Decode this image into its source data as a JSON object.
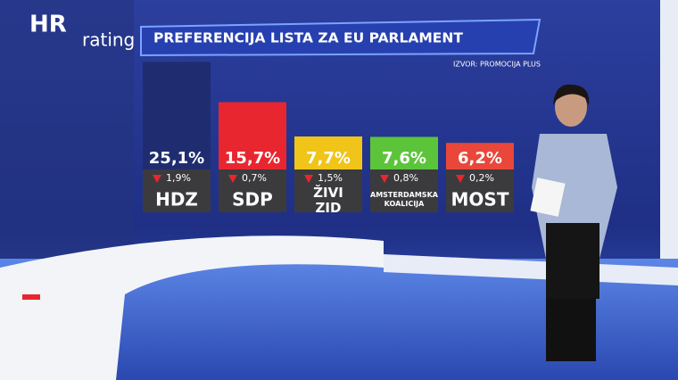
{
  "logo": {
    "main": "HR",
    "sub": "rating"
  },
  "chart_data": {
    "type": "bar",
    "title": "PREFERENCIJA LISTA ZA EU PARLAMENT",
    "subtitle": "IZVOR: PROMOCIJA PLUS",
    "categories": [
      "HDZ",
      "SDP",
      "ŽIVI ZID",
      "AMSTERDAMSKA KOALICIJA",
      "MOST"
    ],
    "values": [
      25.1,
      15.7,
      7.7,
      7.6,
      6.2
    ],
    "value_labels": [
      "25,1%",
      "15,7%",
      "7,7%",
      "7,6%",
      "6,2%"
    ],
    "changes": [
      -1.9,
      -0.7,
      -1.5,
      -0.8,
      -0.2
    ],
    "change_labels": [
      "1,9%",
      "0,7%",
      "1,5%",
      "0,8%",
      "0,2%"
    ],
    "colors": [
      "#1f2d70",
      "#e8262f",
      "#f0c419",
      "#5cc43a",
      "#e8473a"
    ],
    "ylim": [
      0,
      26
    ]
  }
}
